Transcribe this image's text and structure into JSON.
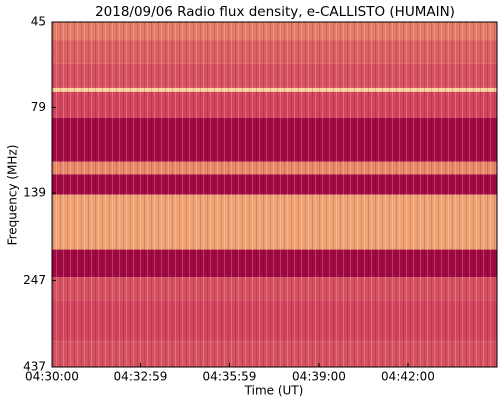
{
  "chart_data": {
    "type": "heatmap",
    "title": "2018/09/06  Radio flux density, e-CALLISTO (HUMAIN)",
    "xlabel": "Time (UT)",
    "ylabel": "Frequency (MHz)",
    "xlim": [
      16200,
      17100
    ],
    "xticks": [
      {
        "value": 16200,
        "label": "04:30:00"
      },
      {
        "value": 16379,
        "label": "04:32:59"
      },
      {
        "value": 16559,
        "label": "04:35:59"
      },
      {
        "value": 16740,
        "label": "04:39:00"
      },
      {
        "value": 16920,
        "label": "04:42:00"
      }
    ],
    "ylim": [
      45,
      437
    ],
    "yticks": [
      45,
      79,
      139,
      247,
      437
    ],
    "ylog": true,
    "y_inverted": true,
    "y_bins": [
      45,
      50.7,
      59.3,
      69.5,
      71.3,
      84.6,
      113,
      122.8,
      140.4,
      201.6,
      241.9,
      281.8,
      368.9,
      437
    ],
    "intensity": [
      0.55,
      0.45,
      0.4,
      0.9,
      0.35,
      0.05,
      0.6,
      0.05,
      0.7,
      0.05,
      0.4,
      0.35,
      0.4
    ],
    "colormap": [
      "#99003f",
      "#d23f5c",
      "#f09a6e",
      "#fdebaa"
    ]
  }
}
